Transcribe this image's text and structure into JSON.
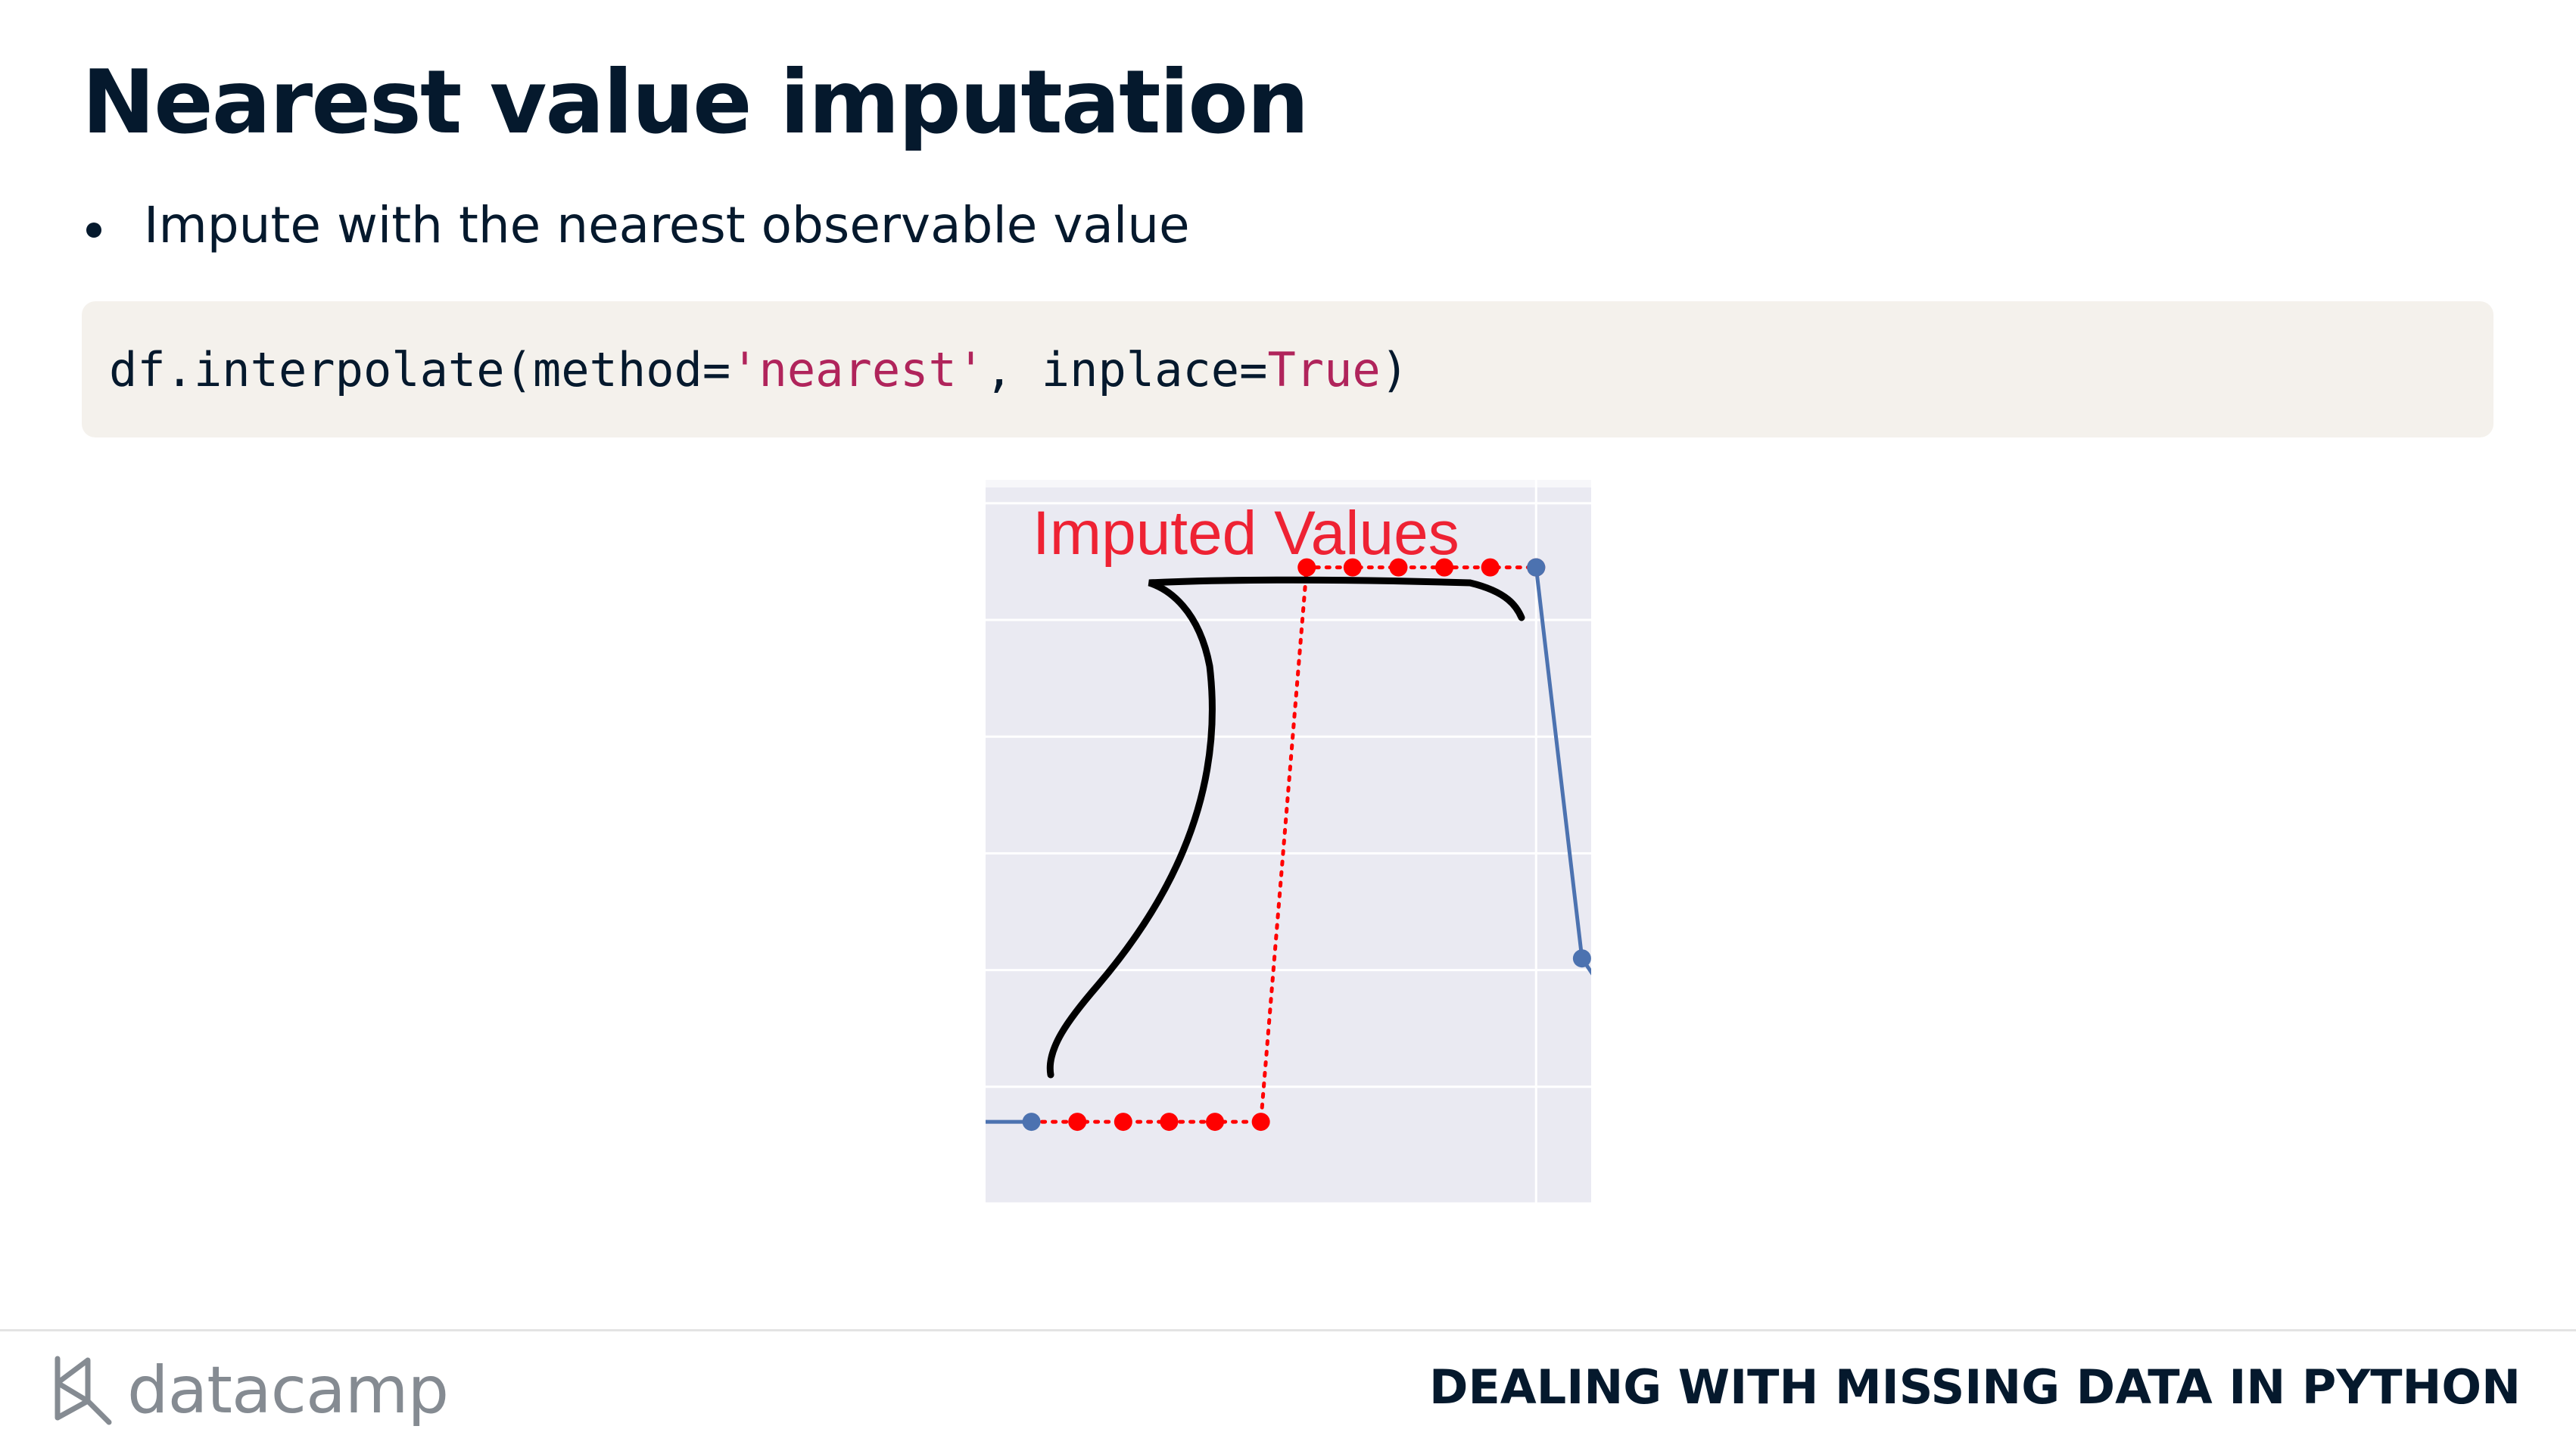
{
  "slide": {
    "title": "Nearest value imputation",
    "bullets": [
      "Impute with the nearest observable value"
    ]
  },
  "code": {
    "prefix": "df.interpolate(method=",
    "string_arg": "'nearest'",
    "middle": ", inplace=",
    "keyword_arg": "True",
    "suffix": ")"
  },
  "figure": {
    "annotation": "Imputed Values",
    "colors": {
      "background": "#eaeaf2",
      "observed": "#4c72b0",
      "imputed": "#ff0000",
      "annotation_text": "#ee2233",
      "bracket": "#000000"
    }
  },
  "chart_data": {
    "type": "line",
    "title": "",
    "xlabel": "",
    "ylabel": "",
    "xlim": [
      0,
      13.2
    ],
    "ylim": [
      0,
      6.2
    ],
    "grid": true,
    "series": [
      {
        "x": [
          0,
          1
        ],
        "y": [
          0.7,
          0.7
        ]
      },
      {
        "x": [
          1,
          2,
          3,
          4,
          5,
          6,
          7,
          8,
          9,
          10,
          11,
          12
        ],
        "y": [
          0.7,
          0.7,
          0.7,
          0.7,
          0.7,
          0.7,
          5.45,
          5.45,
          5.45,
          5.45,
          5.45,
          5.45
        ]
      },
      {
        "x": [
          12,
          13,
          13.6
        ],
        "y": [
          5.45,
          2.1,
          1.75
        ]
      }
    ]
  },
  "footer": {
    "logo_text": "datacamp",
    "course_title": "DEALING WITH MISSING DATA IN PYTHON"
  }
}
